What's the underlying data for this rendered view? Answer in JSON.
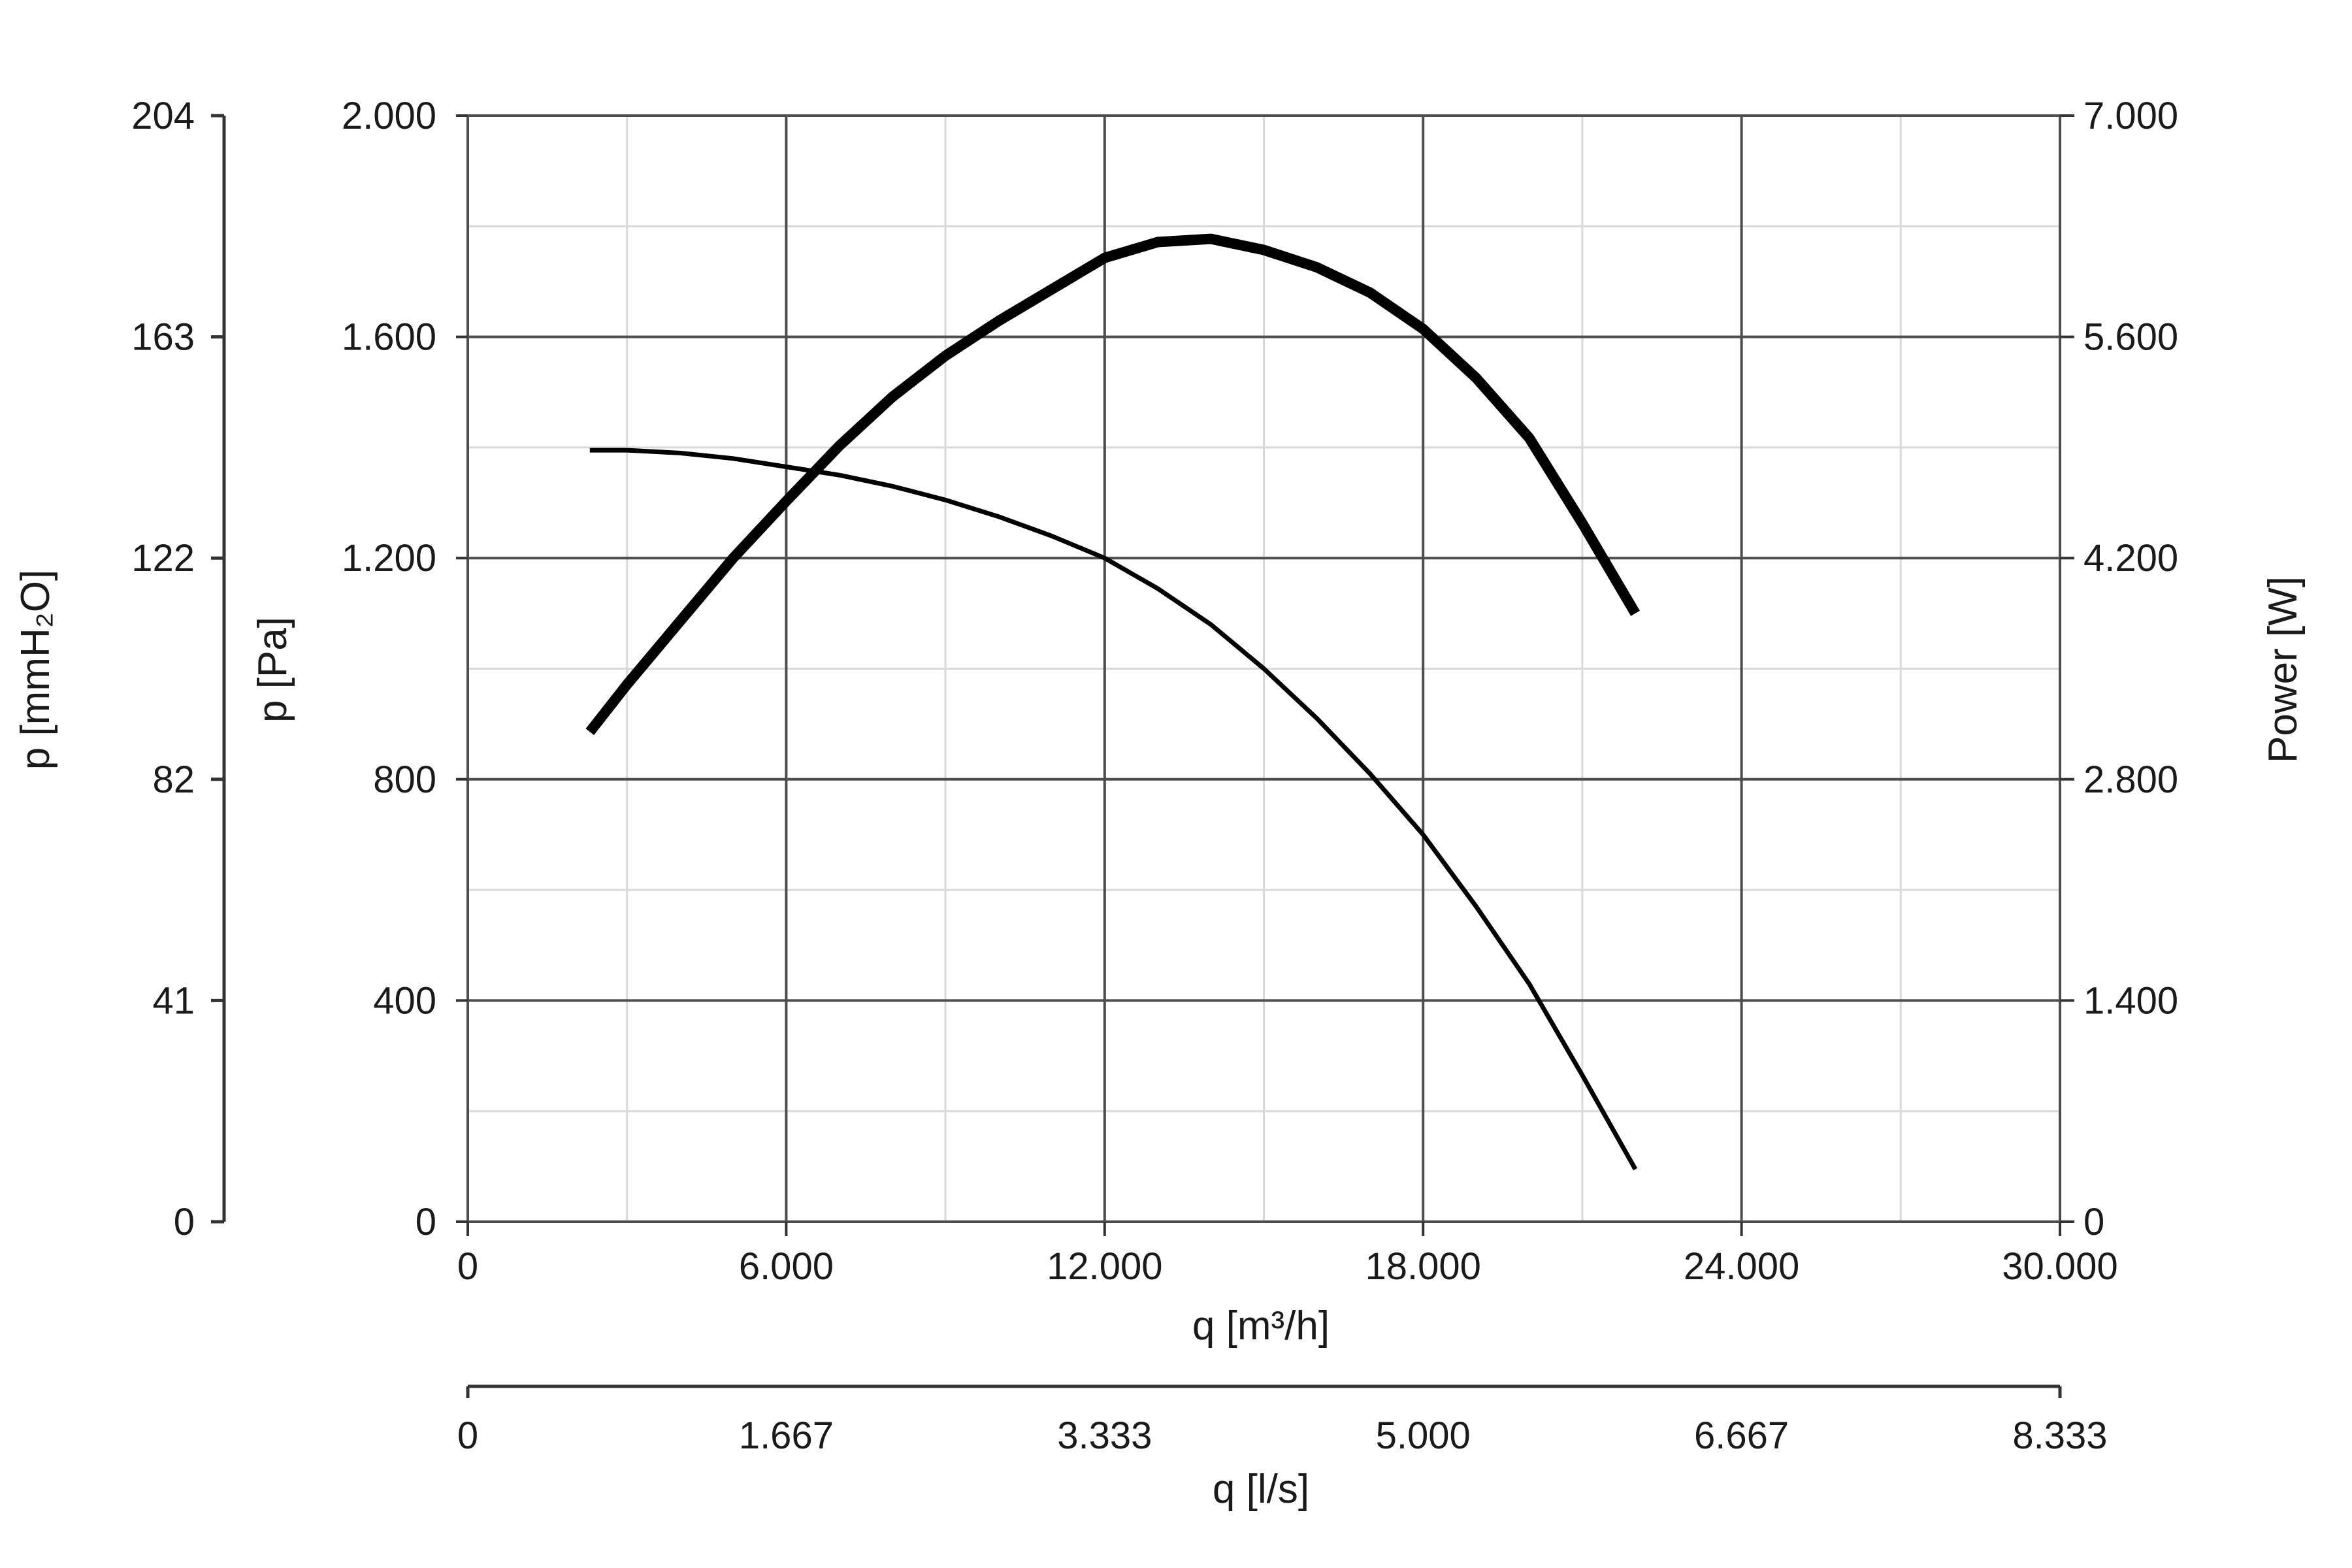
{
  "chart_data": {
    "type": "line",
    "grid": true,
    "x_axis": {
      "label": "q [m³/h]",
      "range": [
        0,
        30000
      ],
      "ticks": [
        0,
        6000,
        12000,
        18000,
        24000,
        30000
      ],
      "tick_labels": [
        "0",
        "6.000",
        "12.000",
        "18.000",
        "24.000",
        "30.000"
      ]
    },
    "x_axis_secondary": {
      "label": "q [l/s]",
      "tick_labels": [
        "0",
        "1.667",
        "3.333",
        "5.000",
        "6.667",
        "8.333"
      ]
    },
    "y_axis": {
      "label": "p [Pa]",
      "range": [
        0,
        2000
      ],
      "ticks": [
        0,
        400,
        800,
        1200,
        1600,
        2000
      ],
      "tick_labels": [
        "0",
        "400",
        "800",
        "1.200",
        "1.600",
        "2.000"
      ]
    },
    "y_axis_left_outer": {
      "label": "p [mmH₂O]",
      "tick_labels": [
        "0",
        "41",
        "82",
        "122",
        "163",
        "204"
      ]
    },
    "y_axis_right": {
      "label": "Power [W]",
      "range": [
        0,
        7000
      ],
      "ticks": [
        0,
        1400,
        2800,
        4200,
        5600,
        7000
      ],
      "tick_labels": [
        "0",
        "1.400",
        "2.800",
        "4.200",
        "5.600",
        "7.000"
      ]
    },
    "series": [
      {
        "axis": "left",
        "stroke": "#000000",
        "weight": "thin",
        "x": [
          2300,
          3000,
          4000,
          5000,
          6000,
          7000,
          8000,
          9000,
          10000,
          11000,
          12000,
          13000,
          14000,
          15000,
          16000,
          17000,
          18000,
          19000,
          20000,
          21000,
          22000
        ],
        "y": [
          1395,
          1395,
          1390,
          1380,
          1365,
          1350,
          1330,
          1305,
          1275,
          1240,
          1200,
          1145,
          1080,
          1000,
          910,
          810,
          700,
          570,
          430,
          265,
          95
        ]
      },
      {
        "axis": "right",
        "stroke": "#000000",
        "weight": "thick",
        "x": [
          2300,
          3000,
          4000,
          5000,
          6000,
          7000,
          8000,
          9000,
          10000,
          11000,
          12000,
          13000,
          14000,
          15000,
          16000,
          17000,
          18000,
          19000,
          20000,
          21000,
          22000
        ],
        "y": [
          3100,
          3400,
          3800,
          4200,
          4560,
          4910,
          5220,
          5480,
          5700,
          5900,
          6100,
          6200,
          6220,
          6150,
          6040,
          5880,
          5650,
          5340,
          4960,
          4420,
          3850
        ]
      }
    ]
  }
}
